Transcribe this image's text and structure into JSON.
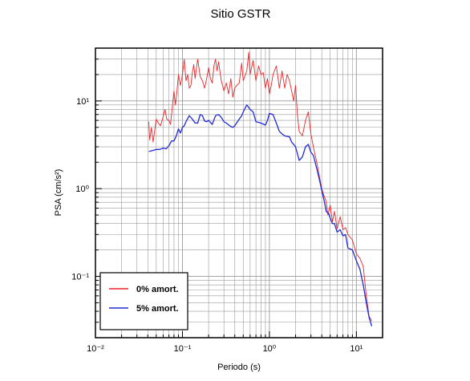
{
  "chart_data": {
    "type": "line",
    "title": "Sitio GSTR",
    "xlabel": "Periodo (s)",
    "ylabel": "PSA (cm/s²)",
    "xscale": "log",
    "yscale": "log",
    "xlim": [
      0.01,
      20
    ],
    "ylim": [
      0.02,
      40
    ],
    "x_tick_labels": [
      "10⁻²",
      "10⁻¹",
      "10⁰",
      "10¹"
    ],
    "y_tick_labels": [
      "10⁻¹",
      "10⁰",
      "10¹"
    ],
    "grid": true,
    "legend_position": "bottom-left",
    "series": [
      {
        "name": "0% amort.",
        "color": "#e8262a",
        "points": [
          [
            0.041,
            5.8
          ],
          [
            0.042,
            3.6
          ],
          [
            0.044,
            5.0
          ],
          [
            0.046,
            3.4
          ],
          [
            0.048,
            4.6
          ],
          [
            0.05,
            6.2
          ],
          [
            0.053,
            5.6
          ],
          [
            0.056,
            5.2
          ],
          [
            0.06,
            6.6
          ],
          [
            0.063,
            8.0
          ],
          [
            0.066,
            6.2
          ],
          [
            0.07,
            6.0
          ],
          [
            0.073,
            5.4
          ],
          [
            0.077,
            9.0
          ],
          [
            0.08,
            13.0
          ],
          [
            0.083,
            9.0
          ],
          [
            0.086,
            12.0
          ],
          [
            0.09,
            20.0
          ],
          [
            0.095,
            15.0
          ],
          [
            0.1,
            20.0
          ],
          [
            0.105,
            30.0
          ],
          [
            0.11,
            17.0
          ],
          [
            0.115,
            20.0
          ],
          [
            0.12,
            14.0
          ],
          [
            0.125,
            15.0
          ],
          [
            0.13,
            21.0
          ],
          [
            0.135,
            26.0
          ],
          [
            0.14,
            18.0
          ],
          [
            0.15,
            30.0
          ],
          [
            0.16,
            19.0
          ],
          [
            0.17,
            17.0
          ],
          [
            0.18,
            14.0
          ],
          [
            0.19,
            18.0
          ],
          [
            0.2,
            24.0
          ],
          [
            0.21,
            18.0
          ],
          [
            0.22,
            16.0
          ],
          [
            0.23,
            25.0
          ],
          [
            0.24,
            30.0
          ],
          [
            0.25,
            22.0
          ],
          [
            0.26,
            28.0
          ],
          [
            0.28,
            17.0
          ],
          [
            0.3,
            13.0
          ],
          [
            0.32,
            16.0
          ],
          [
            0.34,
            12.0
          ],
          [
            0.36,
            18.0
          ],
          [
            0.38,
            11.0
          ],
          [
            0.4,
            14.0
          ],
          [
            0.42,
            15.0
          ],
          [
            0.45,
            16.0
          ],
          [
            0.48,
            27.0
          ],
          [
            0.5,
            17.0
          ],
          [
            0.55,
            22.0
          ],
          [
            0.58,
            36.0
          ],
          [
            0.6,
            20.0
          ],
          [
            0.65,
            29.0
          ],
          [
            0.7,
            17.0
          ],
          [
            0.75,
            25.0
          ],
          [
            0.8,
            20.0
          ],
          [
            0.85,
            21.0
          ],
          [
            0.9,
            14.0
          ],
          [
            0.95,
            18.0
          ],
          [
            1.0,
            12.0
          ],
          [
            1.05,
            15.0
          ],
          [
            1.1,
            20.0
          ],
          [
            1.2,
            25.0
          ],
          [
            1.25,
            19.0
          ],
          [
            1.3,
            14.0
          ],
          [
            1.4,
            22.0
          ],
          [
            1.5,
            14.0
          ],
          [
            1.6,
            20.0
          ],
          [
            1.7,
            17.0
          ],
          [
            1.8,
            13.0
          ],
          [
            1.9,
            10.0
          ],
          [
            2.0,
            15.0
          ],
          [
            2.1,
            7.0
          ],
          [
            2.2,
            4.5
          ],
          [
            2.4,
            4.0
          ],
          [
            2.6,
            6.0
          ],
          [
            2.8,
            7.5
          ],
          [
            3.0,
            4.2
          ],
          [
            3.2,
            3.0
          ],
          [
            3.5,
            2.0
          ],
          [
            3.8,
            1.3
          ],
          [
            4.0,
            1.0
          ],
          [
            4.2,
            0.85
          ],
          [
            4.5,
            0.72
          ],
          [
            4.7,
            0.5
          ],
          [
            5.0,
            0.65
          ],
          [
            5.3,
            0.42
          ],
          [
            5.6,
            0.55
          ],
          [
            6.0,
            0.35
          ],
          [
            6.5,
            0.48
          ],
          [
            7.0,
            0.34
          ],
          [
            7.5,
            0.36
          ],
          [
            8.0,
            0.3
          ],
          [
            9.0,
            0.26
          ],
          [
            10.0,
            0.18
          ],
          [
            11.0,
            0.16
          ],
          [
            12.0,
            0.13
          ],
          [
            13.0,
            0.06
          ],
          [
            14.0,
            0.035
          ],
          [
            15.0,
            0.031
          ]
        ]
      },
      {
        "name": "5% amort.",
        "color": "#1f2ad8",
        "points": [
          [
            0.041,
            2.65
          ],
          [
            0.044,
            2.7
          ],
          [
            0.047,
            2.75
          ],
          [
            0.05,
            2.8
          ],
          [
            0.055,
            2.8
          ],
          [
            0.06,
            2.9
          ],
          [
            0.065,
            2.85
          ],
          [
            0.07,
            3.1
          ],
          [
            0.075,
            3.5
          ],
          [
            0.08,
            3.5
          ],
          [
            0.085,
            4.0
          ],
          [
            0.09,
            4.8
          ],
          [
            0.095,
            4.3
          ],
          [
            0.1,
            5.0
          ],
          [
            0.105,
            5.2
          ],
          [
            0.11,
            5.8
          ],
          [
            0.12,
            6.8
          ],
          [
            0.13,
            6.2
          ],
          [
            0.14,
            5.6
          ],
          [
            0.15,
            5.6
          ],
          [
            0.16,
            7.0
          ],
          [
            0.17,
            6.8
          ],
          [
            0.18,
            5.9
          ],
          [
            0.19,
            5.8
          ],
          [
            0.2,
            6.0
          ],
          [
            0.22,
            5.4
          ],
          [
            0.24,
            6.8
          ],
          [
            0.26,
            7.0
          ],
          [
            0.28,
            6.5
          ],
          [
            0.3,
            5.8
          ],
          [
            0.32,
            5.6
          ],
          [
            0.35,
            5.2
          ],
          [
            0.38,
            5.0
          ],
          [
            0.4,
            5.2
          ],
          [
            0.42,
            5.6
          ],
          [
            0.45,
            6.2
          ],
          [
            0.48,
            6.8
          ],
          [
            0.5,
            7.5
          ],
          [
            0.55,
            9.0
          ],
          [
            0.6,
            8.0
          ],
          [
            0.65,
            7.5
          ],
          [
            0.7,
            5.8
          ],
          [
            0.8,
            5.6
          ],
          [
            0.9,
            5.3
          ],
          [
            0.95,
            6.0
          ],
          [
            1.0,
            7.2
          ],
          [
            1.1,
            7.0
          ],
          [
            1.2,
            5.6
          ],
          [
            1.3,
            4.5
          ],
          [
            1.4,
            4.2
          ],
          [
            1.5,
            4.0
          ],
          [
            1.7,
            3.9
          ],
          [
            1.8,
            3.4
          ],
          [
            2.0,
            3.0
          ],
          [
            2.2,
            2.1
          ],
          [
            2.4,
            2.3
          ],
          [
            2.6,
            3.0
          ],
          [
            2.8,
            3.2
          ],
          [
            3.0,
            2.6
          ],
          [
            3.2,
            2.4
          ],
          [
            3.5,
            1.7
          ],
          [
            3.8,
            1.2
          ],
          [
            4.0,
            0.95
          ],
          [
            4.3,
            0.7
          ],
          [
            4.5,
            0.55
          ],
          [
            4.8,
            0.52
          ],
          [
            5.0,
            0.46
          ],
          [
            5.3,
            0.4
          ],
          [
            5.6,
            0.4
          ],
          [
            6.0,
            0.32
          ],
          [
            6.5,
            0.34
          ],
          [
            7.0,
            0.29
          ],
          [
            7.5,
            0.3
          ],
          [
            8.0,
            0.21
          ],
          [
            9.0,
            0.2
          ],
          [
            10.0,
            0.15
          ],
          [
            11.0,
            0.12
          ],
          [
            12.0,
            0.08
          ],
          [
            13.0,
            0.05
          ],
          [
            14.0,
            0.034
          ],
          [
            15.0,
            0.027
          ]
        ]
      }
    ]
  }
}
